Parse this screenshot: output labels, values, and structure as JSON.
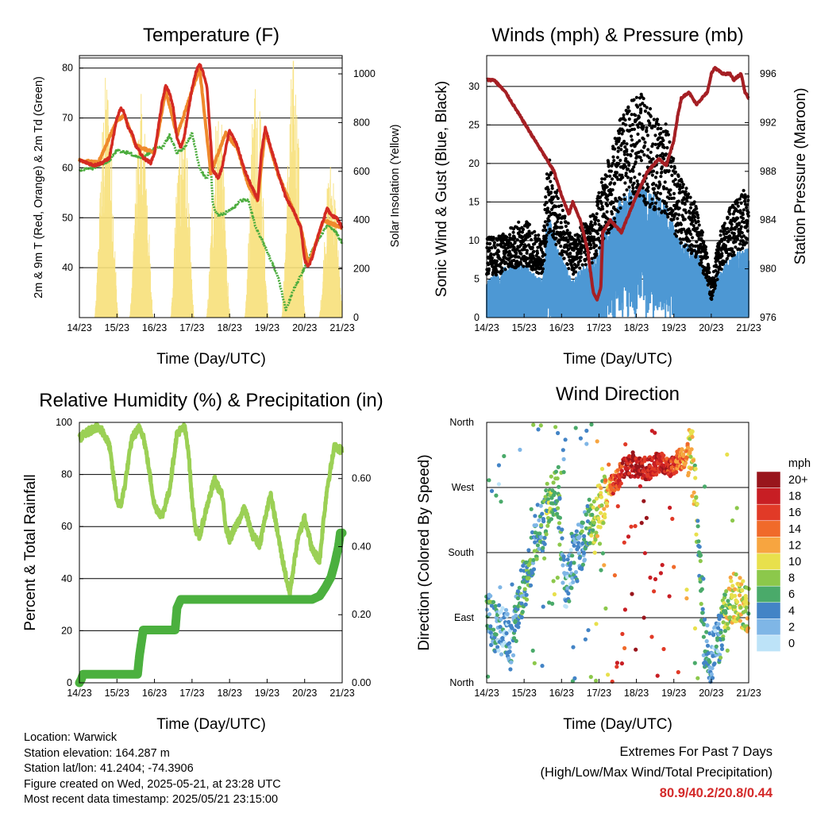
{
  "colors": {
    "temp_2m": "#d42a23",
    "temp_9m": "#ef8a2c",
    "dewpoint": "#4bac3d",
    "solar": "#f7e07a",
    "wind": "#000000",
    "gust_sonic": "#4d98d4",
    "pressure": "#a51f24",
    "rh": "#9bd055",
    "precip": "#4bb03e",
    "extremes_text": "#d42a2a"
  },
  "panels": {
    "temperature": {
      "title": "Temperature (F)",
      "ylabel_left": "2m & 9m T (Red, Orange) & 2m Td (Green)",
      "ylabel_right": "Solar Insolation (Yellow)",
      "xlabel": "Time (Day/UTC)"
    },
    "winds": {
      "title": "Winds (mph) & Pressure (mb)",
      "ylabel_left": "Sonic Wind & Gust (Blue, Black)",
      "ylabel_right": "Station Pressure (Maroon)",
      "xlabel": "Time (Day/UTC)"
    },
    "humidity": {
      "title": "Relative Humidity (%) & Precipitation (in)",
      "ylabel_left": "Percent & Total Rainfall",
      "xlabel": "Time (Day/UTC)"
    },
    "direction": {
      "title": "Wind Direction",
      "ylabel_left": "Direction (Colored By Speed)",
      "xlabel": "Time (Day/UTC)",
      "legend_title": "mph",
      "legend_labels": [
        "20+",
        "18",
        "16",
        "14",
        "12",
        "10",
        "8",
        "6",
        "4",
        "2",
        "0"
      ],
      "legend_colors": [
        "#99151c",
        "#c81e24",
        "#e13a27",
        "#f06a2a",
        "#f7a540",
        "#e8e04c",
        "#8cc84b",
        "#4aaa6a",
        "#4384c6",
        "#7fb6e6",
        "#bde3f8"
      ]
    }
  },
  "footer": {
    "location": "Location: Warwick",
    "elevation": "Station elevation: 164.287 m",
    "latlon": "Station lat/lon: 41.2404; -74.3906",
    "created": "Figure created on Wed, 2025-05-21, at 23:28 UTC",
    "recent": "Most recent data timestamp: 2025/05/21 23:15:00"
  },
  "extremes": {
    "line1": "Extremes For Past 7 Days",
    "line2": "(High/Low/Max Wind/Total Precipitation)",
    "values": "80.9/40.2/20.8/0.44"
  },
  "chart_data": [
    {
      "type": "line",
      "title": "Temperature (F)",
      "xlabel": "Time (Day/UTC)",
      "ylabel": "2m & 9m T (Red, Orange) & 2m Td (Green)",
      "y2label": "Solar Insolation (Yellow)",
      "x_ticks": [
        "14/23",
        "15/23",
        "16/23",
        "17/23",
        "18/23",
        "19/23",
        "20/23",
        "21/23"
      ],
      "y_ticks": [
        40,
        50,
        60,
        70,
        80
      ],
      "y2_ticks": [
        0,
        200,
        400,
        600,
        800,
        1000
      ],
      "ylim": [
        30,
        82.5
      ],
      "y2lim": [
        0,
        1075
      ],
      "grid": true,
      "series": [
        {
          "role": "2m T",
          "color": "#d42a23",
          "x": [
            0,
            0.2,
            0.4,
            0.6,
            0.8,
            0.9,
            1.0,
            1.1,
            1.2,
            1.3,
            1.4,
            1.5,
            1.7,
            1.9,
            2.0,
            2.1,
            2.2,
            2.3,
            2.4,
            2.5,
            2.6,
            2.7,
            2.8,
            3.0,
            3.1,
            3.2,
            3.3,
            3.4,
            3.55,
            3.7,
            3.8,
            3.9,
            4.0,
            4.2,
            4.4,
            4.6,
            4.7,
            4.75,
            4.85,
            4.95,
            5.1,
            5.3,
            5.5,
            5.7,
            5.9,
            6.0,
            6.1,
            6.2,
            6.4,
            6.5,
            6.6,
            6.7,
            6.85,
            7.0
          ],
          "y": [
            61.5,
            61.0,
            60.5,
            61.0,
            62.0,
            66.0,
            70.0,
            72.0,
            71.0,
            68.0,
            67.0,
            64.5,
            62.0,
            61.0,
            63.0,
            68.0,
            73.0,
            76.5,
            75.0,
            72.0,
            66.0,
            64.0,
            66.5,
            76.0,
            79.0,
            80.9,
            79.0,
            76.0,
            59.5,
            58.0,
            60.0,
            64.0,
            67.5,
            64.5,
            59.5,
            56.0,
            54.5,
            53.5,
            63.0,
            68.0,
            64.0,
            59.0,
            54.0,
            51.5,
            48.0,
            41.5,
            40.2,
            42.0,
            47.5,
            49.5,
            52.0,
            50.5,
            50.0,
            48.0
          ]
        },
        {
          "role": "9m T",
          "color": "#ef8a2c",
          "x": [
            0,
            0.5,
            1.0,
            1.2,
            1.5,
            2.0,
            2.3,
            2.6,
            3.0,
            3.2,
            3.5,
            3.9,
            4.2,
            4.5,
            4.75,
            4.95,
            5.3,
            5.9,
            6.1,
            6.5,
            7.0
          ],
          "y": [
            61.5,
            61.0,
            69.5,
            70.5,
            64.5,
            63.0,
            75.5,
            66.5,
            75.5,
            80.0,
            59.0,
            67.0,
            64.0,
            56.5,
            53.5,
            67.5,
            58.5,
            48.0,
            40.5,
            49.5,
            48.0
          ]
        },
        {
          "role": "2m Td",
          "color": "#4bac3d",
          "x": [
            0,
            0.4,
            0.8,
            1.0,
            1.3,
            1.5,
            1.7,
            2.0,
            2.2,
            2.4,
            2.6,
            2.8,
            3.0,
            3.2,
            3.4,
            3.5,
            3.55,
            3.6,
            3.7,
            3.9,
            4.1,
            4.3,
            4.5,
            4.7,
            4.9,
            5.1,
            5.3,
            5.5,
            5.7,
            5.9,
            6.0,
            6.2,
            6.4,
            6.6,
            6.8,
            7.0
          ],
          "y": [
            59.5,
            60.0,
            61.5,
            63.5,
            63.0,
            62.5,
            62.0,
            64.0,
            64.0,
            66.5,
            63.0,
            64.0,
            67.0,
            60.0,
            57.5,
            61.0,
            53.0,
            51.5,
            50.5,
            51.0,
            52.0,
            53.5,
            53.5,
            48.0,
            45.0,
            41.5,
            38.0,
            31.5,
            35.5,
            38.5,
            40.0,
            43.5,
            46.0,
            48.5,
            47.5,
            45.0
          ]
        },
        {
          "role": "Solar Insolation",
          "color": "#f7e07a",
          "peaks_x": [
            0.72,
            1.65,
            2.74,
            3.7,
            4.72,
            5.7,
            6.7
          ],
          "peaks_y": [
            1020,
            920,
            900,
            920,
            1060,
            1080,
            660
          ]
        }
      ]
    },
    {
      "type": "scatter",
      "title": "Winds (mph) & Pressure (mb)",
      "xlabel": "Time (Day/UTC)",
      "ylabel": "Sonic Wind & Gust (Blue, Black)",
      "y2label": "Station Pressure (Maroon)",
      "x_ticks": [
        "14/23",
        "15/23",
        "16/23",
        "17/23",
        "18/23",
        "19/23",
        "20/23",
        "21/23"
      ],
      "y_ticks": [
        0,
        5,
        10,
        15,
        20,
        25,
        30
      ],
      "y2_ticks": [
        976,
        980,
        984,
        988,
        992,
        996
      ],
      "ylim": [
        0,
        34
      ],
      "y2lim": [
        976,
        997.5
      ],
      "grid": true,
      "wind_envelope": {
        "x": [
          0,
          0.3,
          0.6,
          0.9,
          1.1,
          1.2,
          1.5,
          1.6,
          1.7,
          2.0,
          2.3,
          2.6,
          2.9,
          3.0,
          3.2,
          3.4,
          3.6,
          3.9,
          4.1,
          4.2,
          4.5,
          4.8,
          5.0,
          5.2,
          5.6,
          5.9,
          6.0,
          6.2,
          6.5,
          6.8,
          7.0
        ],
        "y": [
          5,
          6,
          7,
          7,
          7,
          6,
          5,
          12,
          13,
          8,
          5,
          7,
          8,
          10,
          12,
          14,
          16,
          17,
          18,
          17,
          16,
          15,
          12,
          10,
          9,
          5,
          3,
          6,
          8,
          9,
          9
        ]
      },
      "gust_envelope": {
        "x": [
          0,
          0.3,
          0.6,
          0.9,
          1.1,
          1.2,
          1.5,
          1.6,
          1.7,
          2.0,
          2.3,
          2.6,
          2.9,
          3.0,
          3.2,
          3.4,
          3.6,
          3.9,
          4.1,
          4.2,
          4.5,
          4.8,
          5.0,
          5.2,
          5.6,
          5.9,
          6.0,
          6.2,
          6.5,
          6.8,
          7.0
        ],
        "y": [
          10,
          10,
          11,
          12,
          12,
          11,
          10,
          18,
          20,
          14,
          10,
          12,
          13,
          16,
          19,
          22,
          25,
          27,
          28,
          27,
          25,
          24,
          20,
          17,
          14,
          8,
          4,
          10,
          14,
          16,
          16
        ]
      },
      "pressure": {
        "x": [
          0,
          0.2,
          0.5,
          0.7,
          1.0,
          1.3,
          1.6,
          1.8,
          2.0,
          2.2,
          2.3,
          2.5,
          2.7,
          2.85,
          2.95,
          3.05,
          3.1,
          3.3,
          3.6,
          3.8,
          4.0,
          4.3,
          4.6,
          4.8,
          5.0,
          5.1,
          5.2,
          5.4,
          5.6,
          5.9,
          6.0,
          6.1,
          6.3,
          6.5,
          6.6,
          6.8,
          6.9,
          7.0
        ],
        "y": [
          995.5,
          995.5,
          994.5,
          993.5,
          992.0,
          990.5,
          989.0,
          988.0,
          986.0,
          984.5,
          985.5,
          984.0,
          981.5,
          978.0,
          977.5,
          978.5,
          983.0,
          984.0,
          983.0,
          984.5,
          986.0,
          988.0,
          989.0,
          988.5,
          990.5,
          992.5,
          994.0,
          994.5,
          993.5,
          994.5,
          996.0,
          996.5,
          996.0,
          996.0,
          995.5,
          996.0,
          994.5,
          994.0
        ]
      }
    },
    {
      "type": "line",
      "title": "Relative Humidity (%) & Precipitation (in)",
      "xlabel": "Time (Day/UTC)",
      "ylabel": "Percent & Total Rainfall",
      "x_ticks": [
        "14/23",
        "15/23",
        "16/23",
        "17/23",
        "18/23",
        "19/23",
        "20/23",
        "21/23"
      ],
      "y_ticks": [
        0,
        20,
        40,
        60,
        80,
        100
      ],
      "y2_ticks": [
        "0.00",
        "0.20",
        "0.40",
        "0.60"
      ],
      "ylim": [
        0,
        100
      ],
      "y2lim": [
        0,
        0.765
      ],
      "grid": true,
      "series": [
        {
          "role": "Relative Humidity",
          "color": "#9bd055",
          "x": [
            0,
            0.2,
            0.4,
            0.6,
            0.8,
            0.9,
            1.0,
            1.1,
            1.2,
            1.4,
            1.6,
            1.7,
            1.8,
            2.0,
            2.2,
            2.4,
            2.6,
            2.8,
            2.9,
            3.0,
            3.1,
            3.2,
            3.4,
            3.6,
            3.8,
            3.9,
            4.0,
            4.2,
            4.4,
            4.6,
            4.8,
            5.0,
            5.1,
            5.2,
            5.4,
            5.6,
            5.8,
            6.0,
            6.2,
            6.4,
            6.5,
            6.6,
            6.8,
            7.0
          ],
          "y": [
            94,
            96,
            98,
            97,
            91,
            80,
            70,
            68,
            75,
            94,
            98,
            95,
            87,
            68,
            64,
            74,
            96,
            98,
            90,
            70,
            59,
            56,
            68,
            78,
            72,
            60,
            55,
            61,
            67,
            57,
            53,
            67,
            72,
            64,
            48,
            34,
            54,
            64,
            51,
            47,
            62,
            75,
            91,
            89
          ]
        },
        {
          "role": "Total Precipitation",
          "color": "#4bb03e",
          "x": [
            0,
            0.05,
            0.1,
            1.55,
            1.6,
            1.7,
            2.55,
            2.6,
            2.7,
            6.2,
            6.4,
            6.55,
            6.7,
            6.8,
            6.9,
            6.95,
            7.0
          ],
          "y": [
            0.0,
            0.01,
            0.025,
            0.025,
            0.08,
            0.155,
            0.155,
            0.22,
            0.245,
            0.245,
            0.255,
            0.28,
            0.31,
            0.35,
            0.4,
            0.44,
            0.44
          ]
        }
      ]
    },
    {
      "type": "scatter",
      "title": "Wind Direction",
      "xlabel": "Time (Day/UTC)",
      "ylabel": "Direction (Colored By Speed)",
      "x_ticks": [
        "14/23",
        "15/23",
        "16/23",
        "17/23",
        "18/23",
        "19/23",
        "20/23",
        "21/23"
      ],
      "y_ticks": [
        "North",
        "East",
        "South",
        "West",
        "North"
      ],
      "ylim": [
        0,
        360
      ],
      "color_scale": "mph, 0 to 20+",
      "grid": true,
      "direction_centers": {
        "x": [
          0,
          0.2,
          0.4,
          0.7,
          0.9,
          1.1,
          1.3,
          1.5,
          1.7,
          1.9,
          2.1,
          2.3,
          2.5,
          2.7,
          2.9,
          3.1,
          3.3,
          3.5,
          3.7,
          4.0,
          4.3,
          4.6,
          4.9,
          5.2,
          5.5,
          5.8,
          6.0,
          6.2,
          6.4,
          6.6,
          6.8,
          7.0
        ],
        "deg": [
          95,
          80,
          70,
          60,
          120,
          150,
          200,
          215,
          250,
          260,
          120,
          170,
          180,
          220,
          230,
          250,
          270,
          280,
          300,
          300,
          295,
          305,
          300,
          310,
          320,
          60,
          30,
          60,
          100,
          120,
          110,
          100
        ],
        "speed": [
          5,
          4,
          3,
          3,
          5,
          6,
          5,
          5,
          8,
          6,
          3,
          4,
          4,
          5,
          10,
          9,
          14,
          16,
          18,
          19,
          18,
          18,
          17,
          14,
          10,
          4,
          3,
          4,
          8,
          10,
          10,
          9
        ]
      }
    }
  ]
}
